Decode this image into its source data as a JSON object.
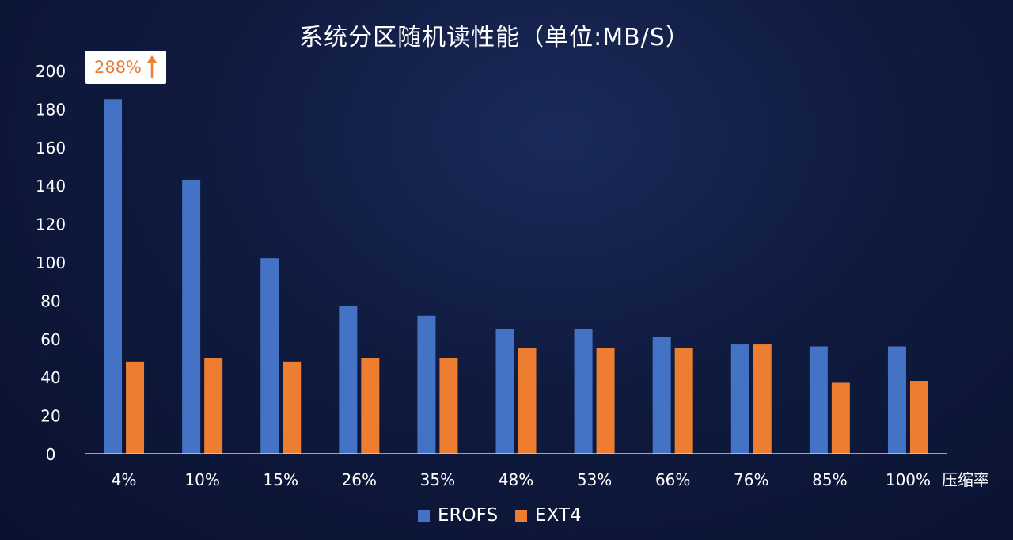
{
  "chart_data": {
    "type": "bar",
    "title": "系统分区随机读性能（单位:MB/S）",
    "xlabel": "压缩率",
    "ylabel": "",
    "ylim": [
      0,
      200
    ],
    "yticks": [
      "0",
      "20",
      "40",
      "60",
      "80",
      "100",
      "120",
      "140",
      "160",
      "180",
      "200"
    ],
    "categories": [
      "4%",
      "10%",
      "15%",
      "26%",
      "35%",
      "48%",
      "53%",
      "66%",
      "76%",
      "85%",
      "100%"
    ],
    "series": [
      {
        "name": "EROFS",
        "color": "#4472c4",
        "values": [
          185,
          143,
          102,
          77,
          72,
          65,
          65,
          61,
          57,
          56,
          56
        ]
      },
      {
        "name": "EXT4",
        "color": "#ed7d31",
        "values": [
          48,
          50,
          48,
          50,
          50,
          55,
          55,
          55,
          57,
          37,
          38
        ]
      }
    ],
    "annotation": {
      "text": "288%",
      "color": "#ed7d31",
      "icon": "up-arrow-icon"
    },
    "legend_position": "bottom",
    "grid": false
  }
}
